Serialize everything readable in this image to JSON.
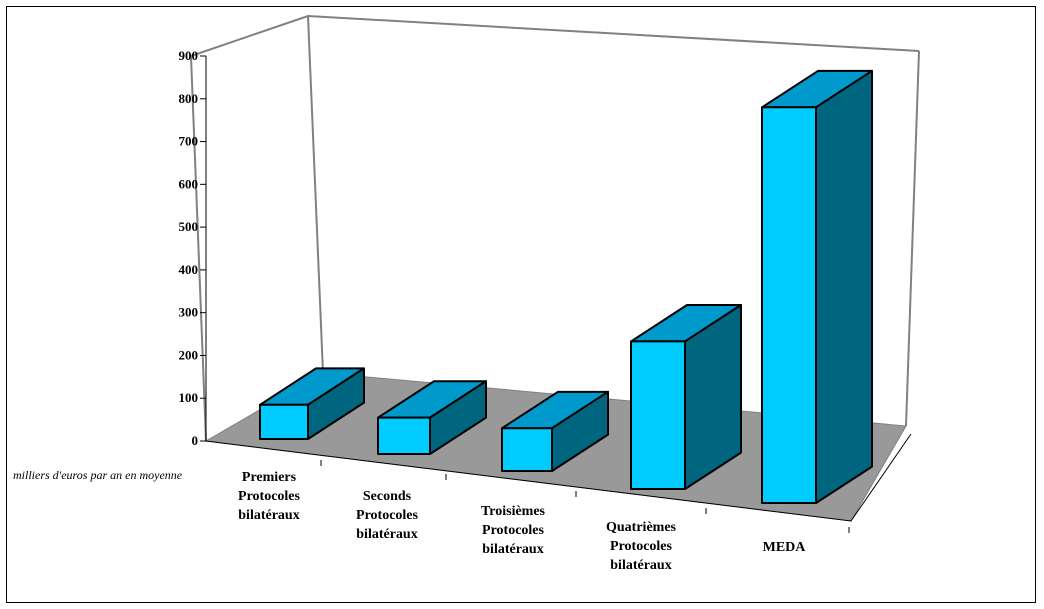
{
  "chart_data": {
    "type": "bar",
    "title": "",
    "xlabel": "",
    "ylabel": "milliers d'euros par an en moyenne",
    "categories": [
      [
        "Premiers",
        "Protocoles",
        "bilatéraux"
      ],
      [
        "Seconds",
        "Protocoles",
        "bilatéraux"
      ],
      [
        "Troisièmes",
        "Protocoles",
        "bilatéraux"
      ],
      [
        "Quatrièmes",
        "Protocoles",
        "bilatéraux"
      ],
      [
        "MEDA"
      ]
    ],
    "values": [
      80,
      85,
      100,
      345,
      925
    ],
    "ylim": [
      0,
      900
    ],
    "yticks": [
      0,
      100,
      200,
      300,
      400,
      500,
      600,
      700,
      800,
      900
    ],
    "three_d": true,
    "legend": "none",
    "colors": {
      "bar_front": "#00ccff",
      "bar_top": "#0099cc",
      "bar_side": "#006680",
      "floor": "#999999",
      "walls": "#ffffff",
      "edge": "#000000",
      "wall_line": "#808080"
    }
  }
}
